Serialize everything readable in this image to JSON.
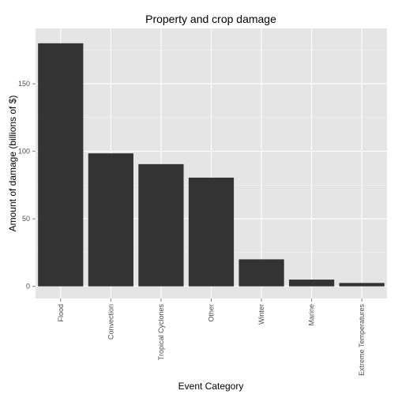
{
  "chart_data": {
    "type": "bar",
    "title": "Property and crop damage",
    "xlabel": "Event Category",
    "ylabel": "Amount of damage (billions of $)",
    "categories": [
      "Flood",
      "Convection",
      "Tropical Cyclones",
      "Other",
      "Winter",
      "Marine",
      "Extreme Temperatures"
    ],
    "values": [
      180,
      98.5,
      90.5,
      80.5,
      20,
      5,
      2.5
    ],
    "yticks": [
      0,
      50,
      100,
      150
    ],
    "ylim": [
      -9,
      191
    ],
    "grid": true,
    "legend": "none",
    "colors": {
      "bar": "#333333",
      "panel": "#e5e5e5",
      "grid_major": "#ffffff",
      "grid_minor": "#f2f2f2"
    }
  }
}
